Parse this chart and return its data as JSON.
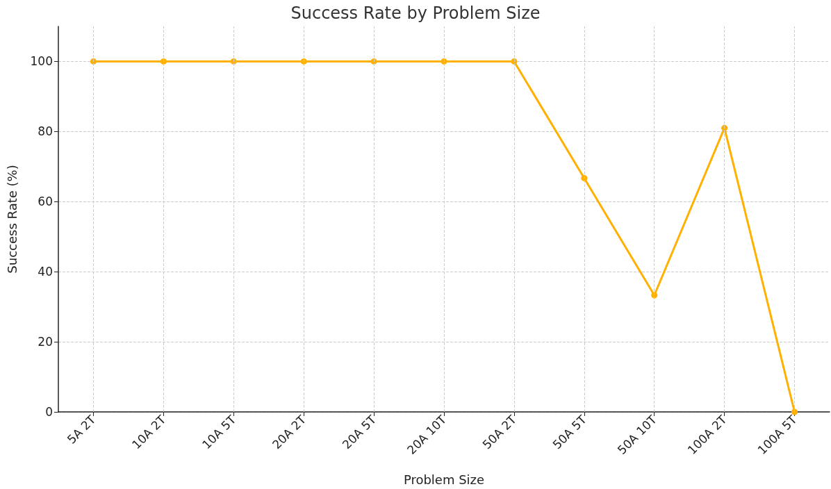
{
  "chart_data": {
    "type": "line",
    "title": "Success Rate by Problem Size",
    "xlabel": "Problem Size",
    "ylabel": "Success Rate (%)",
    "categories": [
      "5A 2T",
      "10A 2T",
      "10A 5T",
      "20A 2T",
      "20A 5T",
      "20A 10T",
      "50A 2T",
      "50A 5T",
      "50A 10T",
      "100A 2T",
      "100A 5T"
    ],
    "series": [
      {
        "color": "#ffb000",
        "values": [
          100,
          100,
          100,
          100,
          100,
          100,
          100,
          66.7,
          33.3,
          81,
          0
        ]
      }
    ],
    "ylim": [
      0,
      110
    ],
    "yticks": [
      0,
      20,
      40,
      60,
      80,
      100
    ],
    "grid": true,
    "marker": "circle",
    "line_style": "solid"
  }
}
